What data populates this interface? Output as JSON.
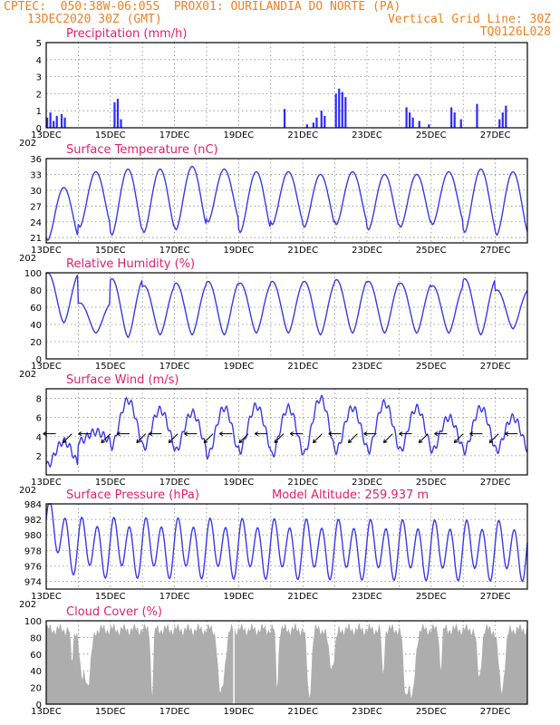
{
  "header": {
    "line1_left": "CPTEC:  050:38W-06:05S  PROX01: OURILANDIA DO NORTE (PA)",
    "line2_left": "13DEC2020 30Z (GMT)",
    "line2_right": "Vertical Grid Line: 30Z",
    "line3_right": "TQ0126L028"
  },
  "x_tick_labels": [
    "13DEC",
    "15DEC",
    "17DEC",
    "19DEC",
    "21DEC",
    "23DEC",
    "25DEC",
    "27DEC"
  ],
  "x_year_fragment": "202",
  "colors": {
    "header": "#f08020",
    "title": "#e0206a",
    "series": "#3a3ae6",
    "bars": "#2b2bff",
    "cloud": "#adadad"
  },
  "chart_data": [
    {
      "type": "bar",
      "title": "Precipitation (mm/h)",
      "ylim": [
        0,
        5
      ],
      "yticks": [
        0,
        1,
        2,
        3,
        4,
        5
      ],
      "grid": true,
      "bars": [
        [
          0.0,
          0.6
        ],
        [
          0.1,
          0.9
        ],
        [
          0.2,
          0.4
        ],
        [
          0.3,
          0.7
        ],
        [
          0.45,
          0.8
        ],
        [
          0.55,
          0.6
        ],
        [
          2.1,
          1.5
        ],
        [
          2.2,
          1.7
        ],
        [
          2.3,
          0.5
        ],
        [
          7.4,
          1.1
        ],
        [
          8.1,
          0.2
        ],
        [
          8.3,
          0.3
        ],
        [
          8.4,
          0.6
        ],
        [
          8.55,
          1.0
        ],
        [
          8.65,
          0.7
        ],
        [
          9.0,
          2.0
        ],
        [
          9.1,
          2.3
        ],
        [
          9.2,
          2.1
        ],
        [
          9.3,
          1.8
        ],
        [
          11.2,
          1.2
        ],
        [
          11.3,
          0.9
        ],
        [
          11.4,
          0.6
        ],
        [
          11.6,
          0.4
        ],
        [
          11.9,
          0.2
        ],
        [
          12.6,
          1.2
        ],
        [
          12.7,
          0.9
        ],
        [
          12.9,
          0.5
        ],
        [
          13.4,
          1.4
        ],
        [
          14.1,
          0.5
        ],
        [
          14.2,
          0.9
        ],
        [
          14.3,
          1.3
        ]
      ]
    },
    {
      "type": "line",
      "title": "Surface Temperature (nC)",
      "ylim": [
        20,
        36
      ],
      "yticks": [
        21,
        24,
        27,
        30,
        33,
        36
      ],
      "grid": true,
      "daily_extremes": {
        "min": [
          20.5,
          23,
          21.5,
          22,
          22.5,
          24,
          22,
          23.5,
          23,
          23.5,
          22.5,
          23,
          23.5,
          22,
          21.5
        ],
        "max": [
          30.5,
          33.5,
          34,
          34,
          34.5,
          34,
          33.5,
          33.5,
          33,
          33.5,
          33,
          33,
          33.5,
          34,
          33.5
        ]
      }
    },
    {
      "type": "line",
      "title": "Relative Humidity (%)",
      "ylim": [
        0,
        100
      ],
      "yticks": [
        0,
        20,
        40,
        60,
        80,
        100
      ],
      "grid": true,
      "daily_extremes": {
        "max": [
          100,
          65,
          93,
          85,
          88,
          90,
          88,
          90,
          90,
          92,
          90,
          88,
          85,
          93,
          80
        ],
        "min": [
          42,
          30,
          25,
          28,
          28,
          28,
          30,
          30,
          28,
          30,
          30,
          30,
          30,
          28,
          35
        ]
      }
    },
    {
      "type": "line",
      "title": "Surface Wind (m/s)",
      "ylim": [
        0,
        9
      ],
      "yticks": [
        2,
        4,
        6,
        8
      ],
      "grid": true,
      "daily_extremes": {
        "max": [
          3.5,
          4.5,
          7.8,
          6.8,
          6.5,
          7.0,
          7.2,
          7.0,
          8.0,
          7.0,
          7.5,
          7.0,
          6.0,
          7.0,
          6.0
        ],
        "min": [
          1.0,
          3.5,
          3.0,
          2.8,
          2.5,
          2.0,
          2.5,
          2.0,
          2.2,
          2.5,
          2.5,
          2.5,
          2.5,
          2.5,
          2.5
        ]
      },
      "arrow_days": [
        0.3,
        0.8,
        1.4,
        2.0,
        2.6,
        3.1,
        3.6,
        4.1,
        4.7,
        5.2,
        5.8,
        6.3,
        6.9,
        7.4,
        8.0,
        8.6,
        9.2,
        9.7,
        10.3,
        10.8,
        11.4,
        11.9,
        12.5,
        13.0,
        13.6,
        14.1,
        14.7
      ]
    },
    {
      "type": "line",
      "title": "Surface Pressure (hPa)",
      "annotation": "Model Altitude: 259.937 m",
      "ylim": [
        973,
        984
      ],
      "yticks": [
        974,
        976,
        978,
        980,
        982,
        984
      ],
      "grid": true
    },
    {
      "type": "area",
      "title": "Cloud Cover (%)",
      "ylim": [
        0,
        100
      ],
      "yticks": [
        0,
        20,
        40,
        60,
        80,
        100
      ],
      "grid": true
    }
  ]
}
